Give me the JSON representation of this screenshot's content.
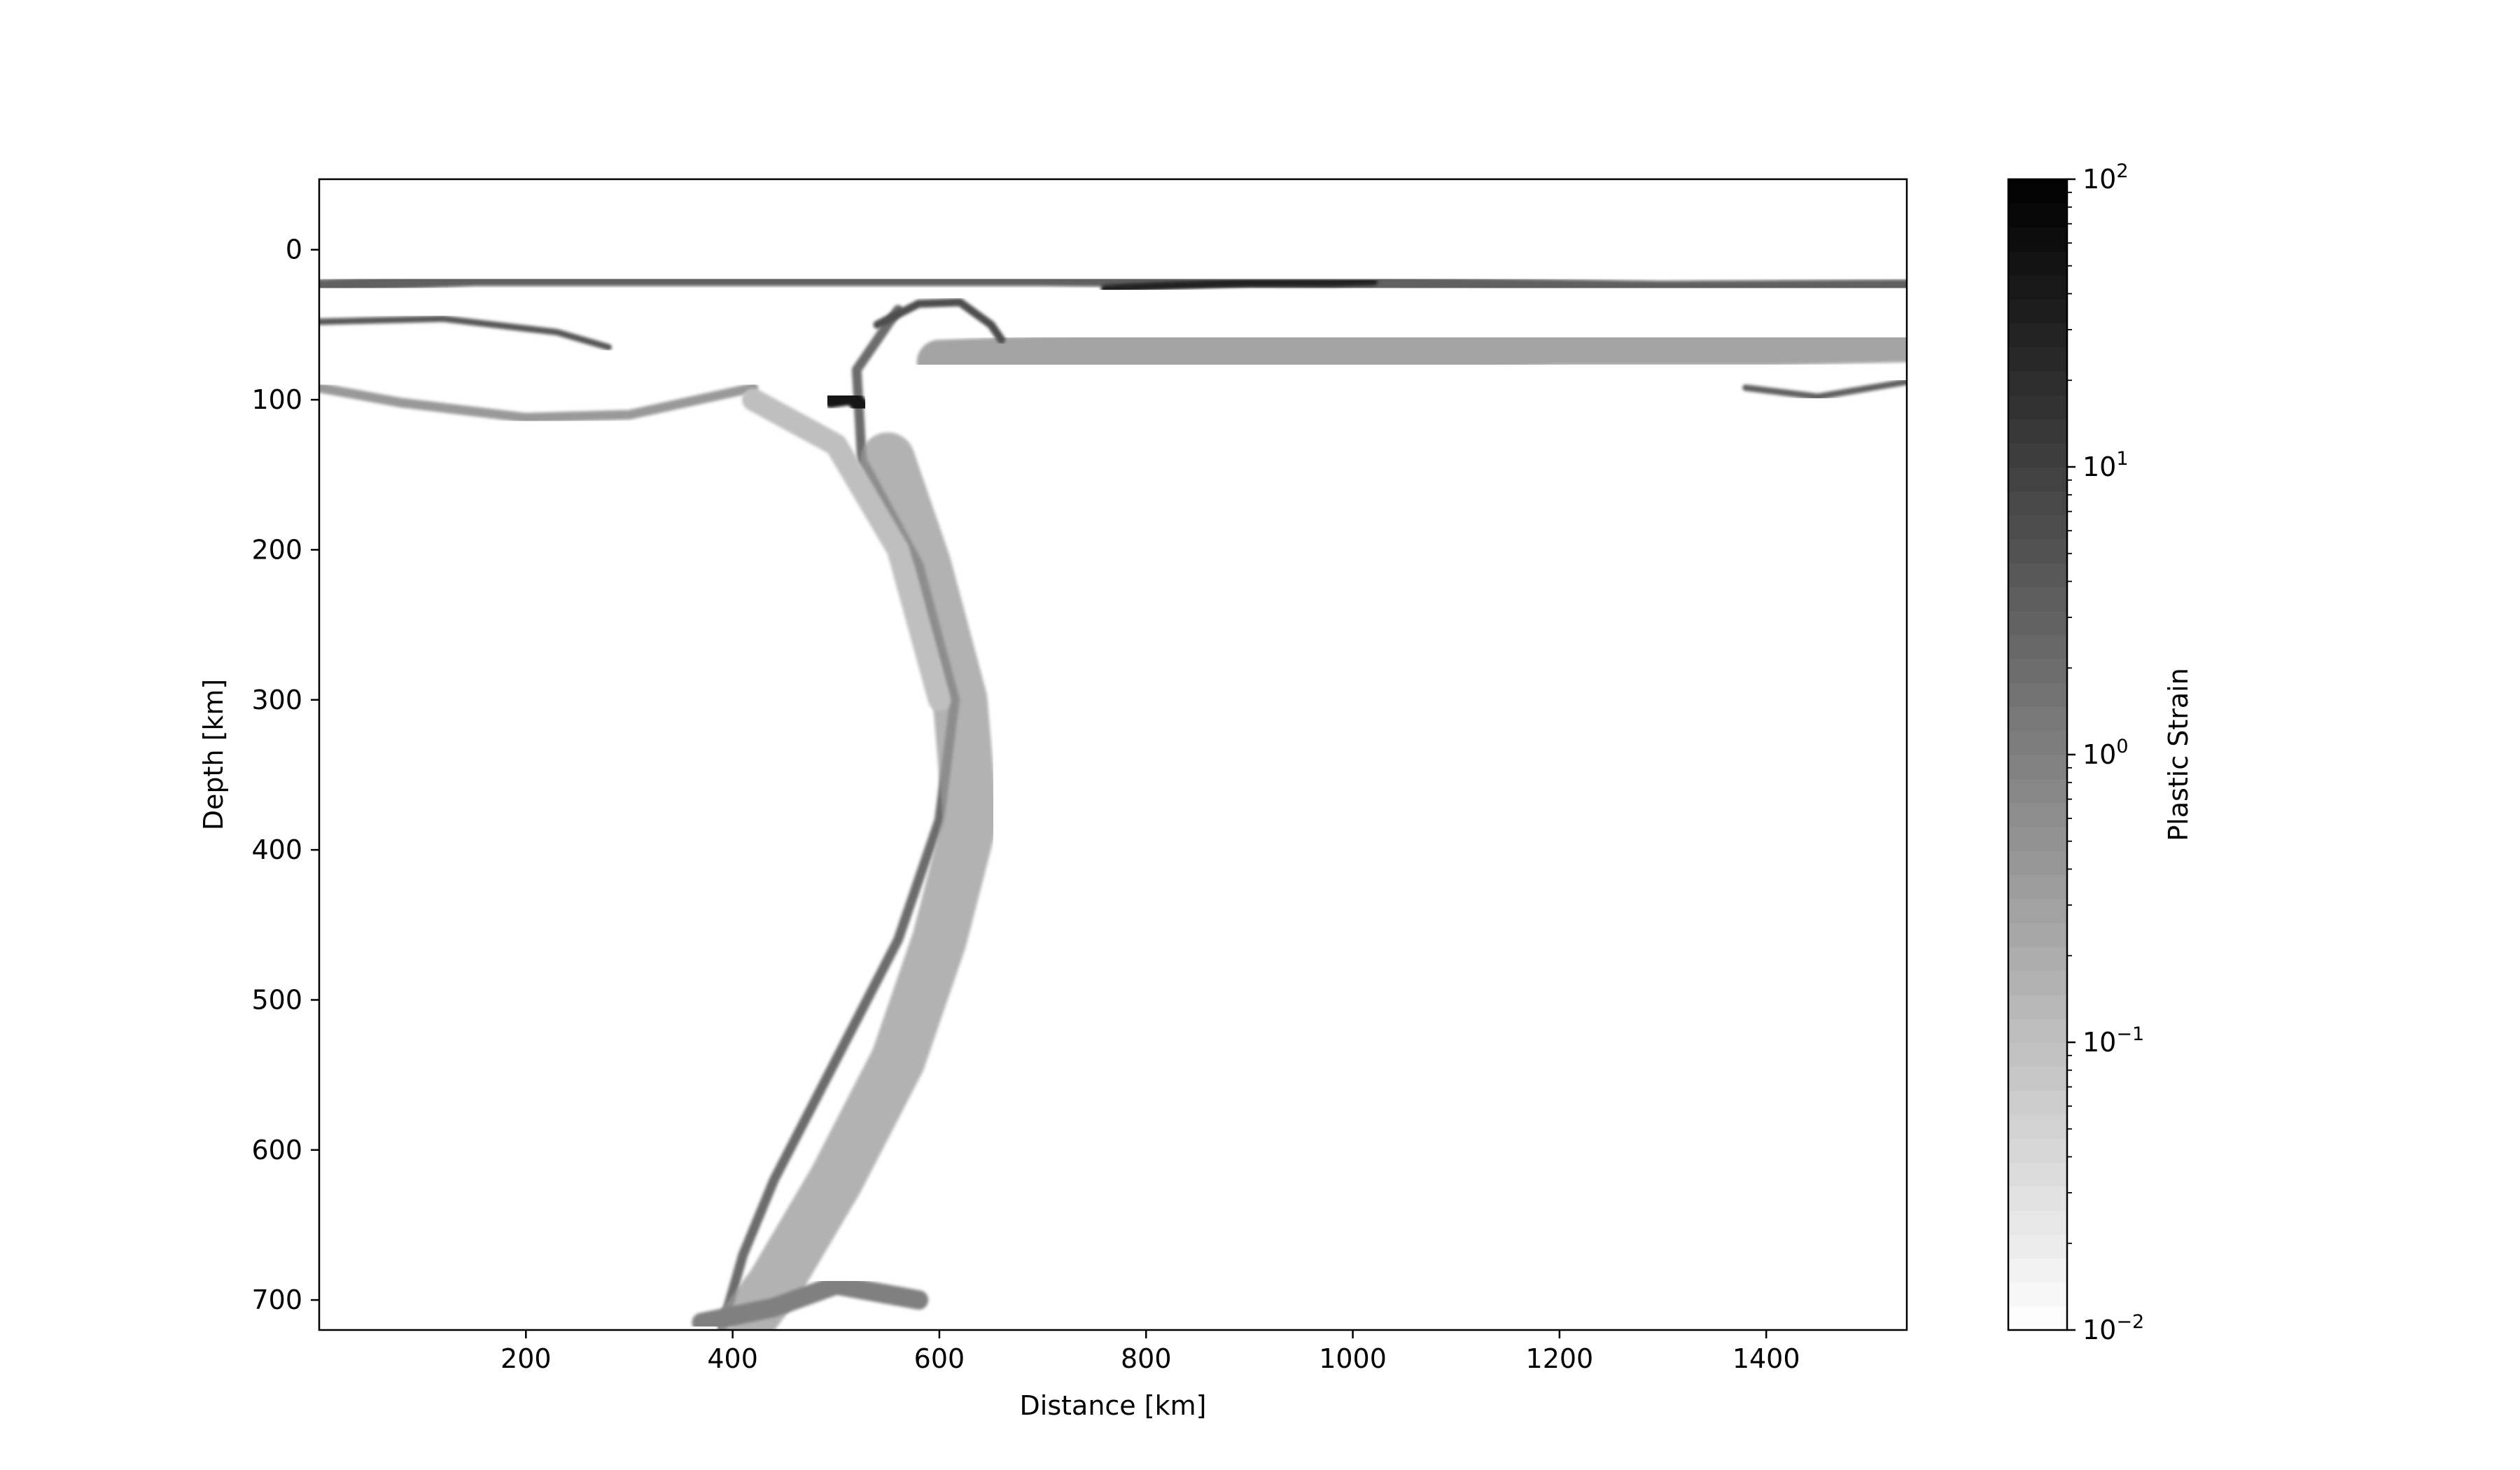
{
  "chart_data": {
    "type": "heatmap",
    "title": "",
    "xlabel": "Distance [km]",
    "ylabel": "Depth [km]",
    "xlim": [
      0,
      1536
    ],
    "ylim": [
      720,
      -47
    ],
    "x_ticks": [
      200,
      400,
      600,
      800,
      1000,
      1200,
      1400
    ],
    "y_ticks": [
      0,
      100,
      200,
      300,
      400,
      500,
      600,
      700
    ],
    "grid": false,
    "colormap": "Greys",
    "colorbar": {
      "label": "Plastic Strain",
      "scale": "log",
      "range": [
        0.01,
        100
      ],
      "tick_exponents": [
        -2,
        -1,
        0,
        1,
        2
      ],
      "tick_base": "10"
    },
    "features": [
      {
        "name": "surface crust strain band",
        "path": [
          [
            0,
            24
          ],
          [
            150,
            20
          ],
          [
            300,
            20
          ],
          [
            500,
            20
          ],
          [
            700,
            20
          ],
          [
            1000,
            22
          ],
          [
            1300,
            25
          ],
          [
            1536,
            24
          ]
        ],
        "strain": 3,
        "width": 8
      },
      {
        "name": "upper plate lower band",
        "path": [
          [
            0,
            48
          ],
          [
            120,
            46
          ],
          [
            230,
            55
          ],
          [
            280,
            65
          ]
        ],
        "strain": 4,
        "width": 4
      },
      {
        "name": "upper plate base",
        "path": [
          [
            0,
            92
          ],
          [
            80,
            102
          ],
          [
            200,
            112
          ],
          [
            300,
            110
          ],
          [
            420,
            92
          ]
        ],
        "strain": 0.4,
        "width": 6
      },
      {
        "name": "overriding plate layer",
        "path": [
          [
            600,
            75
          ],
          [
            800,
            70
          ],
          [
            1000,
            66
          ],
          [
            1200,
            62
          ],
          [
            1400,
            62
          ],
          [
            1536,
            60
          ]
        ],
        "strain": 0.8,
        "width": 28
      },
      {
        "name": "thin dark strip",
        "path": [
          [
            760,
            26
          ],
          [
            820,
            24
          ],
          [
            900,
            22
          ],
          [
            980,
            22
          ],
          [
            1020,
            21
          ]
        ],
        "strain": 30,
        "width": 5
      },
      {
        "name": "right lower band",
        "path": [
          [
            1380,
            92
          ],
          [
            1450,
            98
          ],
          [
            1536,
            88
          ]
        ],
        "strain": 3,
        "width": 4
      },
      {
        "name": "slab interface",
        "path": [
          [
            560,
            40
          ],
          [
            520,
            80
          ],
          [
            525,
            140
          ],
          [
            580,
            210
          ],
          [
            615,
            300
          ],
          [
            600,
            380
          ],
          [
            560,
            460
          ],
          [
            500,
            540
          ],
          [
            440,
            620
          ],
          [
            410,
            670
          ],
          [
            390,
            718
          ]
        ],
        "strain": 2,
        "width": 6
      },
      {
        "name": "slab",
        "path": [
          [
            550,
            140
          ],
          [
            585,
            210
          ],
          [
            620,
            300
          ],
          [
            630,
            380
          ],
          [
            600,
            460
          ],
          [
            560,
            540
          ],
          [
            500,
            620
          ],
          [
            440,
            690
          ],
          [
            410,
            718
          ]
        ],
        "strain": 0.4,
        "width": 34
      },
      {
        "name": "slab tip",
        "path": [
          [
            370,
            715
          ],
          [
            440,
            705
          ],
          [
            500,
            690
          ],
          [
            580,
            700
          ]
        ],
        "strain": 1,
        "width": 12
      },
      {
        "name": "wedge flank",
        "path": [
          [
            420,
            100
          ],
          [
            500,
            130
          ],
          [
            560,
            200
          ],
          [
            600,
            300
          ]
        ],
        "strain": 0.1,
        "width": 14
      },
      {
        "name": "trench cluster",
        "path": [
          [
            495,
            100
          ],
          [
            515,
            98
          ],
          [
            525,
            105
          ]
        ],
        "strain": 40,
        "width": 10
      },
      {
        "name": "hinge bend",
        "path": [
          [
            540,
            50
          ],
          [
            580,
            36
          ],
          [
            620,
            35
          ],
          [
            650,
            50
          ],
          [
            660,
            60
          ]
        ],
        "strain": 6,
        "width": 5
      }
    ]
  }
}
